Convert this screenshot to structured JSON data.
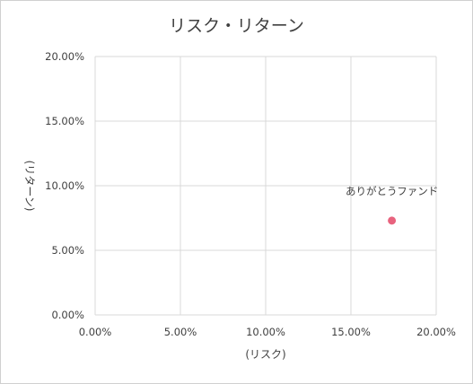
{
  "chart_data": {
    "type": "scatter",
    "title": "リスク・リターン",
    "xlabel": "(リスク)",
    "ylabel": "(リターン)",
    "xlim": [
      0,
      20
    ],
    "ylim": [
      0,
      20
    ],
    "x_ticks": [
      "0.00%",
      "5.00%",
      "10.00%",
      "15.00%",
      "20.00%"
    ],
    "y_ticks": [
      "0.00%",
      "5.00%",
      "10.00%",
      "15.00%",
      "20.00%"
    ],
    "grid": true,
    "points": [
      {
        "label": "ありがとうファンド",
        "x": 17.4,
        "y": 7.3,
        "color": "#e8637e"
      }
    ]
  }
}
